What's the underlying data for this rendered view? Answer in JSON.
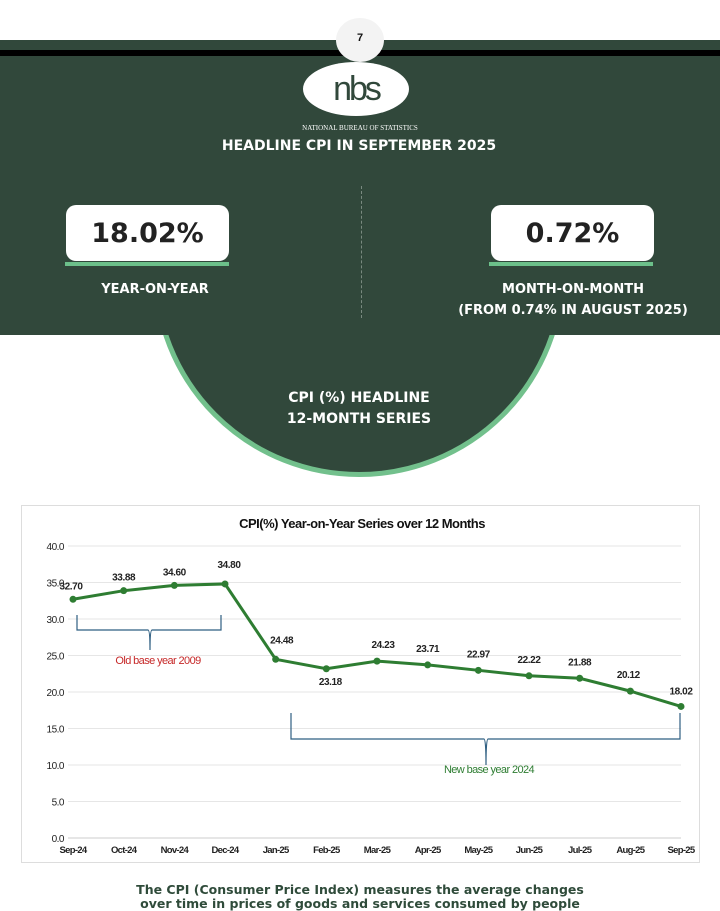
{
  "page_number": "7",
  "logo_text": "nbs",
  "org_name": "NATIONAL BUREAU OF STATISTICS",
  "headline_title": "HEADLINE CPI IN SEPTEMBER 2025",
  "yoy": {
    "value": "18.02%",
    "label": "YEAR-ON-YEAR"
  },
  "mom": {
    "value": "0.72%",
    "label": "MONTH-ON-MONTH",
    "sublabel": "(FROM 0.74% IN AUGUST 2025)"
  },
  "series_title": {
    "line1": "CPI (%)  HEADLINE",
    "line2": "12-MONTH SERIES"
  },
  "colors": {
    "dark_green": "#31483b",
    "accent_green": "#72c08c",
    "line": "#2e7d32",
    "old_base": "#c62828",
    "brace": "#2f5f82"
  },
  "chart_data": {
    "type": "line",
    "title": "CPI(%) Year-on-Year Series over 12 Months",
    "categories": [
      "Sep-24",
      "Oct-24",
      "Nov-24",
      "Dec-24",
      "Jan-25",
      "Feb-25",
      "Mar-25",
      "Apr-25",
      "May-25",
      "Jun-25",
      "Jul-25",
      "Aug-25",
      "Sep-25"
    ],
    "values": [
      32.7,
      33.88,
      34.6,
      34.8,
      24.48,
      23.18,
      24.23,
      23.71,
      22.97,
      22.22,
      21.88,
      20.12,
      18.02
    ],
    "labels": [
      "32.70",
      "33.88",
      "34.60",
      "34.80",
      "24.48",
      "23.18",
      "24.23",
      "23.71",
      "22.97",
      "22.22",
      "21.88",
      "20.12",
      "18.02"
    ],
    "ylim": [
      0,
      40
    ],
    "yticks": [
      "0.0",
      "5.0",
      "10.0",
      "15.0",
      "20.0",
      "25.0",
      "30.0",
      "35.0",
      "40.0"
    ],
    "grid": true,
    "annotations": [
      "Old base year 2009",
      "New base year 2024"
    ]
  },
  "footer": {
    "line1": "The CPI (Consumer Price Index) measures the average changes",
    "line2": "over time in prices of goods and services consumed by people"
  }
}
